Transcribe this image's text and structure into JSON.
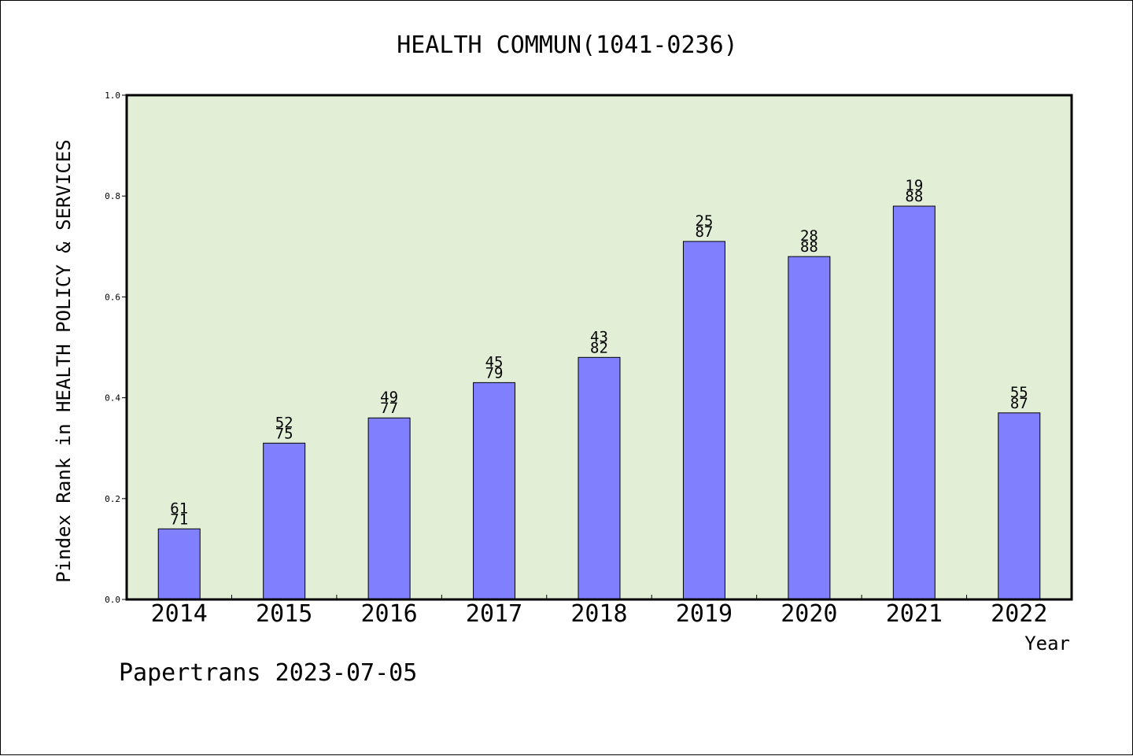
{
  "colors": {
    "plot_background": "#e2efd6",
    "bar_fill": "#8080ff",
    "bar_stroke": "#000000",
    "frame": "#000000"
  },
  "chart_data": {
    "type": "bar",
    "title": "HEALTH COMMUN(1041-0236)",
    "xlabel": "Year",
    "ylabel": "Pindex Rank in HEALTH POLICY & SERVICES",
    "footer": "Papertrans 2023-07-05",
    "ylim": [
      0,
      1.0
    ],
    "yticks": [
      "0.0",
      "0.2",
      "0.4",
      "0.6",
      "0.8",
      "1.0"
    ],
    "grid": false,
    "categories": [
      "2014",
      "2015",
      "2016",
      "2017",
      "2018",
      "2019",
      "2020",
      "2021",
      "2022"
    ],
    "values": [
      0.14,
      0.31,
      0.36,
      0.43,
      0.48,
      0.71,
      0.68,
      0.78,
      0.37
    ],
    "label_top": [
      "61",
      "52",
      "49",
      "45",
      "43",
      "25",
      "28",
      "19",
      "55"
    ],
    "label_bottom": [
      "71",
      "75",
      "77",
      "79",
      "82",
      "87",
      "88",
      "88",
      "87"
    ]
  }
}
